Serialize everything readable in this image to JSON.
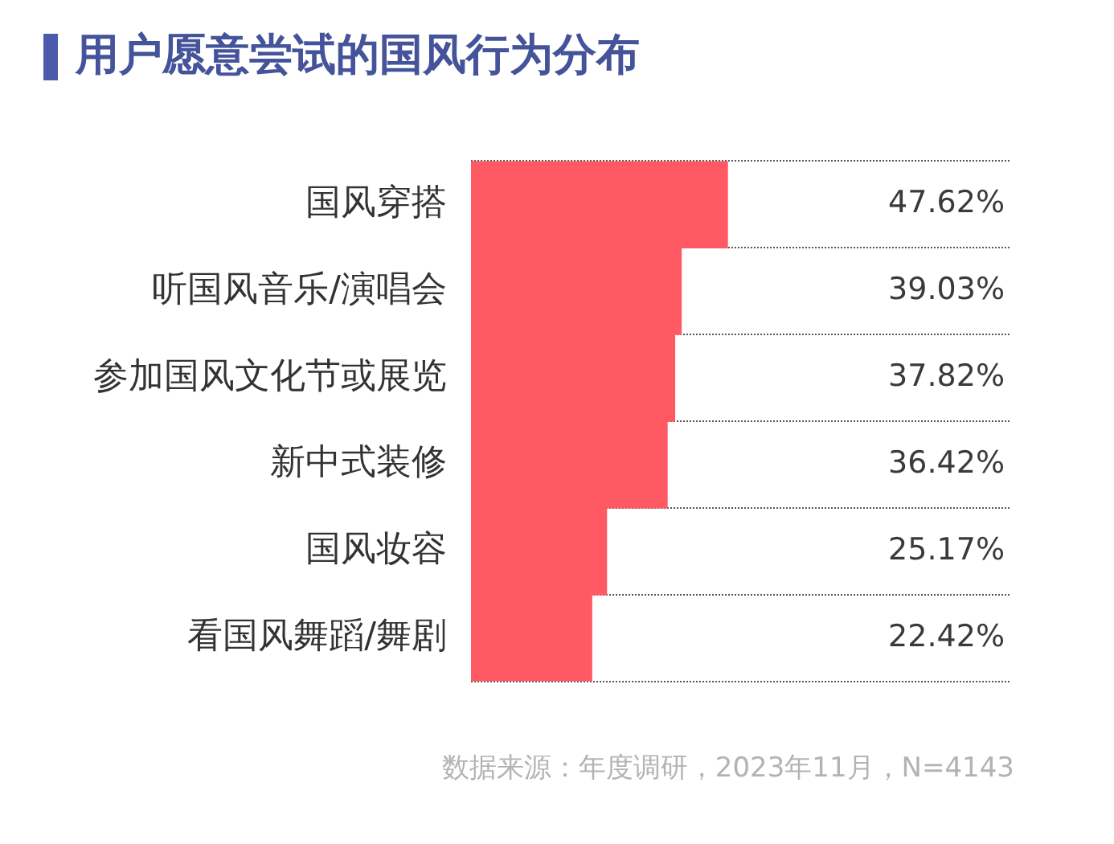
{
  "chart_data": {
    "type": "bar",
    "orientation": "horizontal",
    "title": "用户愿意尝试的国风行为分布",
    "categories": [
      "国风穿搭",
      "听国风音乐/演唱会",
      "参加国风文化节或展览",
      "新中式装修",
      "国风妆容",
      "看国风舞蹈/舞剧"
    ],
    "values": [
      47.62,
      39.03,
      37.82,
      36.42,
      25.17,
      22.42
    ],
    "color": "#ff5964",
    "xlim": [
      0,
      100
    ],
    "value_labels": [
      "47.62%",
      "39.03%",
      "37.82%",
      "36.42%",
      "25.17%",
      "22.42%"
    ],
    "grid": "y",
    "annotations": [
      "数据来源：年度调研，2023年11月，N=4143"
    ]
  }
}
